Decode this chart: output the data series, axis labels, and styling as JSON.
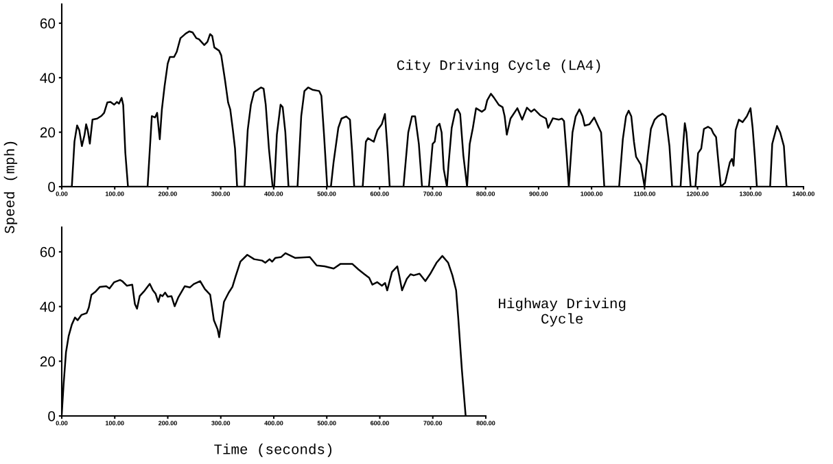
{
  "chart_data": [
    {
      "type": "line",
      "title": "City Driving Cycle (LA4)",
      "ylabel": "Speed (mph)",
      "xlim": [
        0,
        1400
      ],
      "xticks": [
        {
          "value": 0,
          "label": "0.00"
        },
        {
          "value": 100,
          "label": "100.00"
        },
        {
          "value": 200,
          "label": "200.00"
        },
        {
          "value": 300,
          "label": "300.00"
        },
        {
          "value": 400,
          "label": "400.00"
        },
        {
          "value": 500,
          "label": "500.00"
        },
        {
          "value": 600,
          "label": "600.00"
        },
        {
          "value": 700,
          "label": "700.00"
        },
        {
          "value": 800,
          "label": "800.00"
        },
        {
          "value": 900,
          "label": "900.00"
        },
        {
          "value": 1000,
          "label": "1000.00"
        },
        {
          "value": 1100,
          "label": "1100.00"
        },
        {
          "value": 1200,
          "label": "1200.00"
        },
        {
          "value": 1300,
          "label": "1300.00"
        },
        {
          "value": 1400,
          "label": "1400.00"
        }
      ],
      "ylim": [
        0,
        67
      ],
      "yticks": [
        0,
        20,
        40,
        60
      ],
      "marker": "none",
      "line_style": "solid",
      "series": [
        {
          "color": "#000000",
          "x": [
            0,
            19,
            24,
            29,
            33,
            38,
            43,
            46,
            49,
            53,
            58,
            67,
            75,
            80,
            86,
            92,
            99,
            104,
            108,
            113,
            116,
            120,
            125,
            162,
            170,
            176,
            180,
            185,
            189,
            194,
            200,
            204,
            212,
            217,
            224,
            230,
            234,
            241,
            247,
            254,
            259,
            269,
            275,
            280,
            284,
            288,
            297,
            301,
            308,
            314,
            318,
            323,
            327,
            331,
            345,
            351,
            357,
            363,
            370,
            376,
            381,
            385,
            391,
            398,
            401,
            406,
            413,
            417,
            422,
            428,
            445,
            452,
            458,
            465,
            473,
            486,
            490,
            495,
            501,
            508,
            513,
            522,
            528,
            537,
            544,
            548,
            552,
            568,
            574,
            578,
            589,
            596,
            604,
            610,
            615,
            619,
            645,
            654,
            661,
            667,
            674,
            680,
            693,
            700,
            704,
            708,
            713,
            717,
            721,
            727,
            730,
            736,
            743,
            747,
            752,
            758,
            765,
            770,
            776,
            782,
            793,
            799,
            803,
            810,
            816,
            825,
            832,
            836,
            840,
            847,
            860,
            869,
            878,
            886,
            892,
            903,
            914,
            918,
            927,
            938,
            944,
            948,
            953,
            957,
            964,
            970,
            977,
            983,
            987,
            996,
            1005,
            1013,
            1018,
            1024,
            1052,
            1059,
            1065,
            1070,
            1075,
            1080,
            1084,
            1093,
            1100,
            1106,
            1112,
            1119,
            1125,
            1134,
            1140,
            1147,
            1152,
            1168,
            1173,
            1176,
            1179,
            1187,
            1196,
            1201,
            1207,
            1212,
            1220,
            1226,
            1230,
            1235,
            1239,
            1244,
            1252,
            1261,
            1265,
            1268,
            1272,
            1278,
            1285,
            1293,
            1300,
            1304,
            1308,
            1312,
            1337,
            1341,
            1350,
            1356,
            1363,
            1368,
            1370
          ],
          "values": [
            0,
            0,
            16.6,
            22.5,
            20.8,
            14.9,
            19,
            22.9,
            20.8,
            15.8,
            24.6,
            25,
            26,
            27.1,
            30.9,
            31.1,
            30.1,
            31.1,
            30.5,
            32.6,
            30,
            12.4,
            0,
            0,
            25.9,
            25.4,
            27.1,
            17.4,
            28.4,
            36.8,
            45.2,
            47.6,
            47.6,
            49.5,
            54.5,
            55.5,
            56.2,
            57,
            56.6,
            54.5,
            54.1,
            52,
            53.2,
            56,
            55.3,
            51.1,
            49.9,
            48.2,
            39.3,
            30.9,
            28.4,
            20.8,
            14.1,
            0,
            0,
            20.8,
            30.1,
            34.7,
            35.6,
            36.4,
            36,
            30.1,
            14.1,
            0,
            0,
            19.1,
            30.1,
            29.2,
            20,
            0,
            0,
            25.9,
            35.1,
            36.4,
            35.6,
            35.1,
            33.4,
            19.1,
            0,
            0,
            8.9,
            21.6,
            25,
            25.8,
            24.6,
            13.2,
            0,
            0,
            16.5,
            17.8,
            16.5,
            20.8,
            22.9,
            26.7,
            13.2,
            0,
            0,
            19.9,
            25.8,
            25.8,
            15.7,
            0,
            0,
            15.7,
            16.5,
            22,
            23.1,
            19.9,
            6.4,
            0,
            8.1,
            21.6,
            27.9,
            28.5,
            26.7,
            11.5,
            0,
            15.7,
            21.6,
            28.8,
            27.5,
            28.4,
            31.7,
            34.1,
            32.6,
            30,
            29.2,
            25.8,
            19.1,
            25,
            28.8,
            24.6,
            29,
            27.5,
            28.4,
            26.2,
            25,
            21.6,
            25.1,
            24.6,
            25,
            24.1,
            11.5,
            0,
            19.9,
            25.8,
            28.4,
            25.8,
            22.4,
            22.9,
            25.4,
            22,
            19.9,
            0,
            0,
            17.4,
            25.8,
            27.9,
            25.8,
            16.5,
            11,
            8.1,
            0,
            11.5,
            21.2,
            24.6,
            25.8,
            26.8,
            25.8,
            14.9,
            0,
            0,
            15.7,
            23.3,
            19.9,
            0,
            0,
            12.3,
            14,
            21.2,
            22,
            21.2,
            19.5,
            18.2,
            9.8,
            0,
            1.4,
            8.9,
            10.2,
            7.7,
            20.8,
            24.6,
            23.7,
            25.8,
            28.8,
            21.6,
            11.5,
            0,
            0,
            15.7,
            22.3,
            19.9,
            14.9,
            0,
            0
          ]
        }
      ]
    },
    {
      "type": "line",
      "title": "Highway Driving\nCycle",
      "xlabel": "Time (seconds)",
      "xlim": [
        0,
        800
      ],
      "xticks": [
        {
          "value": 0,
          "label": "0.00"
        },
        {
          "value": 100,
          "label": "100.00"
        },
        {
          "value": 200,
          "label": "200.00"
        },
        {
          "value": 300,
          "label": "300.00"
        },
        {
          "value": 400,
          "label": "400.00"
        },
        {
          "value": 500,
          "label": "500.00"
        },
        {
          "value": 600,
          "label": "600.00"
        },
        {
          "value": 700,
          "label": "700.00"
        },
        {
          "value": 800,
          "label": "800.00"
        }
      ],
      "ylim": [
        0,
        69
      ],
      "yticks": [
        0,
        20,
        40,
        60
      ],
      "marker": "none",
      "line_style": "solid",
      "series": [
        {
          "color": "#000000",
          "x": [
            0,
            3.5,
            8,
            13,
            19,
            25,
            30,
            37,
            47,
            51,
            56,
            64,
            72,
            84,
            90,
            99,
            110,
            114,
            123,
            133,
            138,
            142,
            147,
            155,
            166,
            172,
            177,
            182,
            186,
            190,
            195,
            200,
            207,
            213,
            220,
            232,
            242,
            249,
            261,
            270,
            280,
            287,
            294,
            297,
            302,
            306,
            315,
            322,
            328,
            337,
            350,
            363,
            378,
            384,
            392,
            397,
            403,
            414,
            422,
            440,
            468,
            481,
            496,
            513,
            526,
            548,
            560,
            571,
            580,
            586,
            595,
            604,
            610,
            614,
            623,
            633,
            637,
            642,
            651,
            658,
            664,
            675,
            686,
            696,
            707,
            718,
            729,
            737,
            744,
            748,
            755,
            762
          ],
          "values": [
            0.7,
            11.6,
            23.3,
            29.2,
            33.4,
            36,
            35,
            36.9,
            37.6,
            39.6,
            44.3,
            45.5,
            47.2,
            47.4,
            46.6,
            48.9,
            49.7,
            49.3,
            47.6,
            48,
            40.9,
            39.2,
            43.8,
            45.5,
            48.3,
            45.9,
            44.7,
            41.7,
            44.3,
            43.8,
            45.1,
            43.6,
            43.8,
            40.1,
            43.4,
            47.4,
            47,
            48.2,
            49.3,
            46.4,
            44.3,
            35,
            31.7,
            28.8,
            35.9,
            41.7,
            45.1,
            47.2,
            51,
            56.4,
            58.9,
            57.3,
            56.8,
            56,
            57.3,
            56.4,
            57.8,
            58.1,
            59.5,
            57.8,
            58.1,
            55,
            54.7,
            53.9,
            55.6,
            55.6,
            53.5,
            51.8,
            50.5,
            48,
            48.9,
            47.6,
            48.6,
            45.9,
            52.6,
            54.7,
            51,
            45.9,
            50.1,
            51.8,
            51.4,
            52,
            49.3,
            52.2,
            56,
            58.5,
            56,
            51.4,
            45.9,
            35.9,
            16.6,
            0
          ]
        }
      ]
    }
  ]
}
